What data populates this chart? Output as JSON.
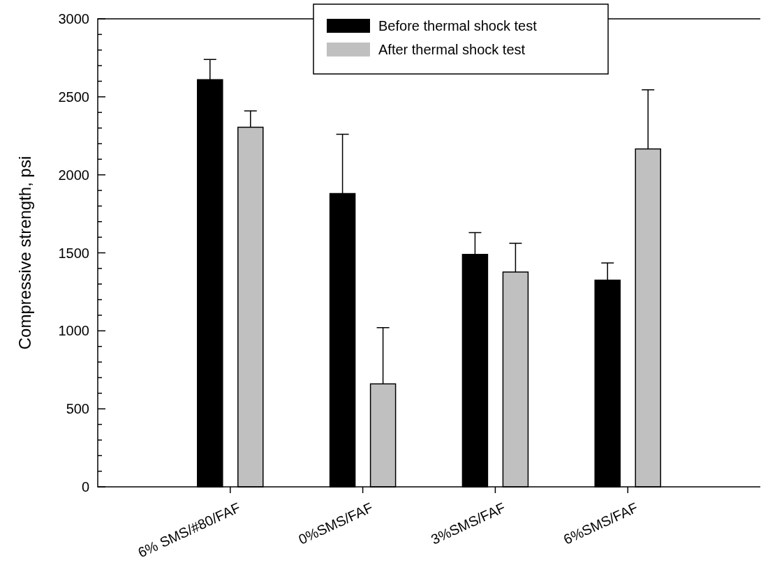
{
  "chart_data": {
    "type": "bar",
    "ylabel": "Compressive strength, psi",
    "categories": [
      "6% SMS/#80/FAF",
      "0%SMS/FAF",
      "3%SMS/FAF",
      "6%SMS/FAF"
    ],
    "series": [
      {
        "name": "Before thermal shock test",
        "color": "#000000",
        "values": [
          2610,
          1880,
          1490,
          1325
        ],
        "errors": [
          [
            2610,
            2740
          ],
          [
            1880,
            2260
          ],
          [
            1490,
            1630
          ],
          [
            1325,
            1435
          ]
        ]
      },
      {
        "name": "After thermal shock test",
        "color": "#c0c0c0",
        "values": [
          2305,
          660,
          1377,
          2166
        ],
        "errors": [
          [
            2305,
            2410
          ],
          [
            660,
            1020
          ],
          [
            1377,
            1562
          ],
          [
            2166,
            2545
          ]
        ]
      }
    ],
    "ylim": [
      0,
      3000
    ],
    "yticks": [
      0,
      {
        "value": 100,
        "label": null
      },
      {
        "value": 200,
        "label": null
      },
      {
        "value": 300,
        "label": null
      },
      {
        "value": 400,
        "label": null
      },
      500,
      {
        "value": 600,
        "label": null
      },
      {
        "value": 700,
        "label": null
      },
      {
        "value": 800,
        "label": null
      },
      {
        "value": 900,
        "label": null
      },
      1000,
      {
        "value": 1100,
        "label": null
      },
      {
        "value": 1200,
        "label": null
      },
      {
        "value": 1300,
        "label": null
      },
      {
        "value": 1400,
        "label": null
      },
      1500,
      {
        "value": 1600,
        "label": null
      },
      {
        "value": 1700,
        "label": null
      },
      {
        "value": 1800,
        "label": null
      },
      {
        "value": 1900,
        "label": null
      },
      2000,
      {
        "value": 2100,
        "label": null
      },
      {
        "value": 2200,
        "label": null
      },
      {
        "value": 2300,
        "label": null
      },
      {
        "value": 2400,
        "label": null
      },
      2500,
      {
        "value": 2600,
        "label": null
      },
      {
        "value": 2700,
        "label": null
      },
      {
        "value": 2800,
        "label": null
      },
      {
        "value": 2900,
        "label": null
      },
      3000
    ],
    "legend": "top",
    "grid": false
  }
}
